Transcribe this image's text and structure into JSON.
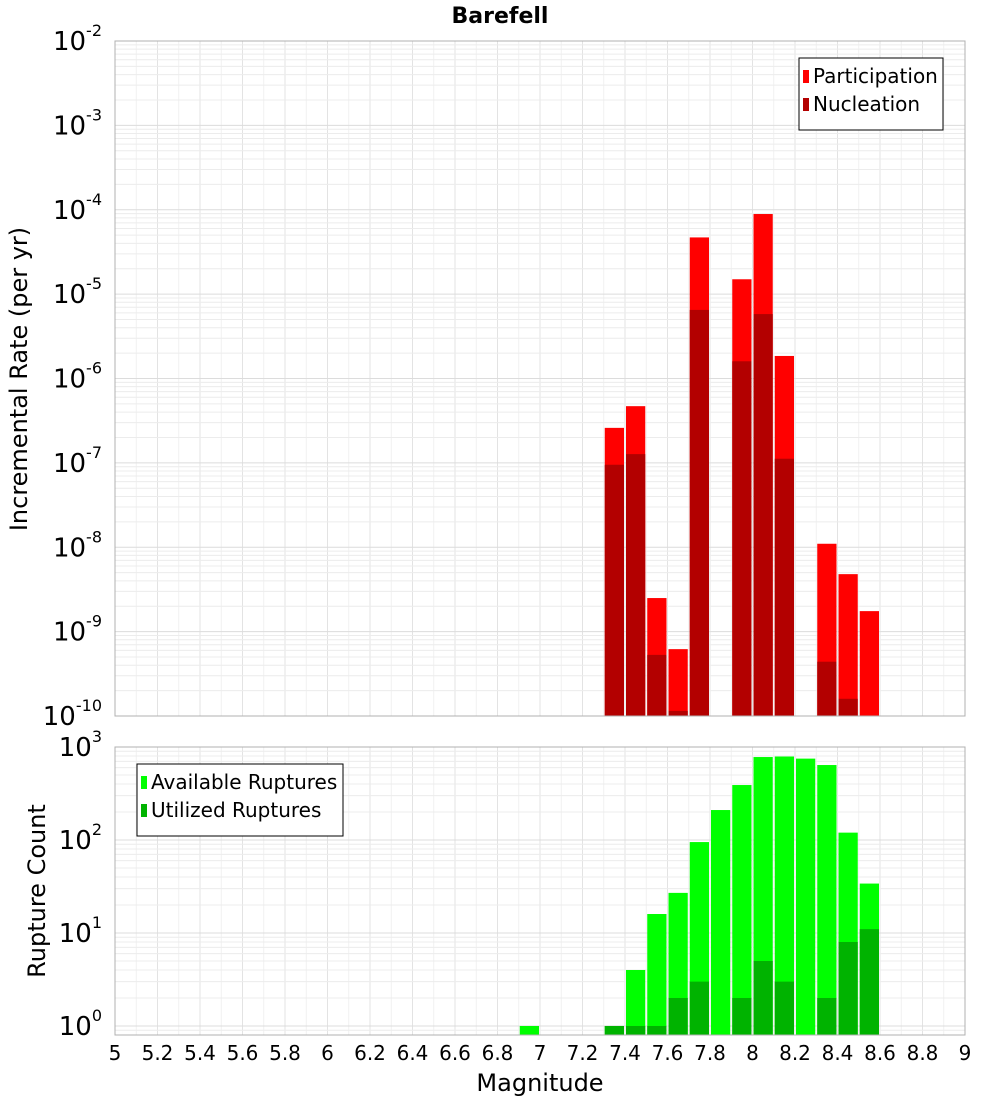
{
  "chart_data": [
    {
      "type": "bar",
      "title": "Barefell",
      "ylabel": "Incremental Rate (per yr)",
      "xlabel": "",
      "yscale": "log",
      "ylim": [
        1e-10,
        0.01
      ],
      "xlim": [
        5,
        9
      ],
      "y_tick_exponents": [
        "-10",
        "-9",
        "-8",
        "-7",
        "-6",
        "-5",
        "-4",
        "-3",
        "-2"
      ],
      "legend": {
        "placement": "top-right",
        "entries": [
          "Participation",
          "Nucleation"
        ]
      },
      "grid": true,
      "x": [
        7.35,
        7.45,
        7.55,
        7.65,
        7.75,
        7.95,
        8.05,
        8.15,
        8.35,
        8.45,
        8.55
      ],
      "series": [
        {
          "name": "Participation",
          "color": "#ff0000",
          "values": [
            2.6e-07,
            4.7e-07,
            2.5e-09,
            6.2e-10,
            4.7e-05,
            1.5e-05,
            8.9e-05,
            1.85e-06,
            1.1e-08,
            4.8e-09,
            1.75e-09
          ]
        },
        {
          "name": "Nucleation",
          "color": "#b30000",
          "values": [
            9.5e-08,
            1.27e-07,
            5.3e-10,
            1.15e-10,
            6.5e-06,
            1.6e-06,
            5.8e-06,
            1.12e-07,
            4.4e-10,
            1.6e-10,
            null
          ]
        }
      ]
    },
    {
      "type": "bar",
      "title": "",
      "ylabel": "Rupture Count",
      "xlabel": "Magnitude",
      "yscale": "log",
      "ylim": [
        0.8,
        1000
      ],
      "xlim": [
        5,
        9
      ],
      "y_tick_exponents": [
        "0",
        "1",
        "2",
        "3"
      ],
      "x_tick_labels": [
        "5",
        "5.2",
        "5.4",
        "5.6",
        "5.8",
        "6",
        "6.2",
        "6.4",
        "6.6",
        "6.8",
        "7",
        "7.2",
        "7.4",
        "7.6",
        "7.8",
        "8",
        "8.2",
        "8.4",
        "8.6",
        "8.8",
        "9"
      ],
      "legend": {
        "placement": "top-left",
        "entries": [
          "Available Ruptures",
          "Utilized Ruptures"
        ]
      },
      "grid": true,
      "x": [
        6.95,
        7.35,
        7.45,
        7.55,
        7.65,
        7.75,
        7.85,
        7.95,
        8.05,
        8.15,
        8.25,
        8.35,
        8.45,
        8.55
      ],
      "series": [
        {
          "name": "Available Ruptures",
          "color": "#00ff00",
          "values": [
            1,
            1,
            4,
            16,
            27,
            95,
            210,
            390,
            780,
            790,
            750,
            640,
            120,
            34
          ]
        },
        {
          "name": "Utilized Ruptures",
          "color": "#00b300",
          "values": [
            null,
            1,
            1,
            1,
            2,
            3,
            null,
            2,
            5,
            3,
            null,
            2,
            8,
            11
          ]
        }
      ]
    }
  ]
}
